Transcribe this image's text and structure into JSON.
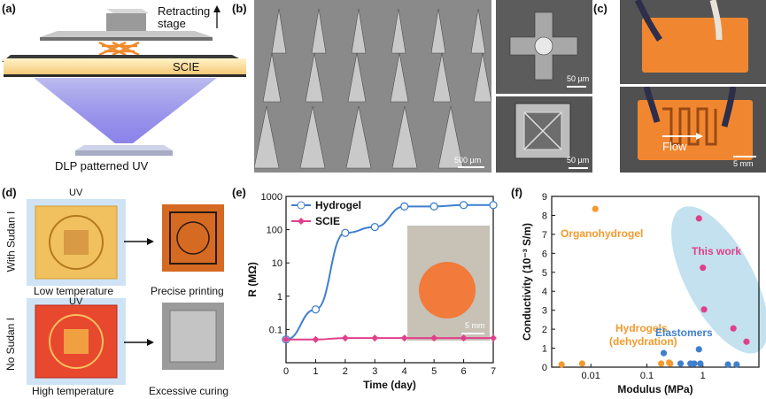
{
  "panel_labels": {
    "a": "(a)",
    "b": "(b)",
    "c": "(c)",
    "d": "(d)",
    "e": "(e)",
    "f": "(f)"
  },
  "panel_a": {
    "stage_label": "Retracting\nstage",
    "resin_label": "SCIE",
    "uv_label": "DLP patterned UV"
  },
  "panel_b": {
    "scale_main": "500 µm",
    "scale_top": "50 µm",
    "scale_bottom": "50 µm"
  },
  "panel_c": {
    "flow_label": "Flow",
    "scale": "5 mm"
  },
  "panel_d": {
    "uv_top": "UV",
    "uv_bottom": "UV",
    "with_label": "With Sudan I",
    "without_label": "No Sudan I",
    "low_temp": "Low temperature",
    "high_temp": "High temperature",
    "precise": "Precise printing",
    "excessive": "Excessive curing"
  },
  "panel_e_inset_scale": "5 mm",
  "chart_data": [
    {
      "id": "e",
      "type": "line",
      "xlabel": "Time (day)",
      "ylabel": "R (MΩ)",
      "xlim": [
        0,
        7
      ],
      "ylim": [
        0.01,
        1000
      ],
      "yscale": "log",
      "xticks": [
        0,
        1,
        2,
        3,
        4,
        5,
        6,
        7
      ],
      "yticks": [
        0.1,
        1,
        10,
        100,
        1000
      ],
      "ytick_labels": [
        "0.1",
        "1",
        "10",
        "100",
        "1000"
      ],
      "legend_position": "top-left",
      "series": [
        {
          "name": "Hydrogel",
          "color": "#3f7fcf",
          "marker": "open-circle",
          "x": [
            0,
            1,
            2,
            3,
            4,
            5,
            6,
            7
          ],
          "y": [
            0.05,
            0.4,
            80,
            120,
            500,
            500,
            550,
            550
          ]
        },
        {
          "name": "SCIE",
          "color": "#e0408a",
          "marker": "diamond",
          "x": [
            0,
            1,
            2,
            3,
            4,
            5,
            6,
            7
          ],
          "y": [
            0.05,
            0.05,
            0.055,
            0.055,
            0.055,
            0.055,
            0.055,
            0.055
          ]
        }
      ]
    },
    {
      "id": "f",
      "type": "scatter",
      "xlabel": "Modulus (MPa)",
      "ylabel": "Conductivity (10⁻³ S/m)",
      "xscale": "log",
      "xlim": [
        0.002,
        10
      ],
      "ylim": [
        0,
        9
      ],
      "xticks": [
        0.01,
        0.1,
        1
      ],
      "xtick_labels": [
        "0.01",
        "0.1",
        "1"
      ],
      "yticks": [
        0,
        1,
        2,
        3,
        4,
        5,
        6,
        7,
        8,
        9
      ],
      "annotations": [
        "Organohydrogel",
        "This work",
        "Hydrogels\n(dehydration)",
        "Elastomers"
      ],
      "groups": [
        {
          "name": "Organohydrogel",
          "color": "#f39a2e",
          "points": [
            [
              0.012,
              8.2
            ]
          ]
        },
        {
          "name": "This work",
          "color": "#e0408a",
          "points": [
            [
              0.85,
              7.7
            ],
            [
              1.0,
              5.1
            ],
            [
              1.05,
              2.9
            ],
            [
              3.5,
              1.9
            ],
            [
              6.0,
              1.2
            ]
          ]
        },
        {
          "name": "Hydrogels (dehydration)",
          "color": "#f39a2e",
          "points": [
            [
              0.003,
              0
            ],
            [
              0.007,
              0.05
            ],
            [
              0.18,
              0.05
            ],
            [
              0.25,
              0.1
            ],
            [
              0.26,
              0.05
            ]
          ]
        },
        {
          "name": "Elastomers",
          "color": "#3f7fcf",
          "points": [
            [
              0.2,
              0.6
            ],
            [
              0.4,
              0.05
            ],
            [
              0.6,
              0.05
            ],
            [
              0.7,
              0.05
            ],
            [
              0.85,
              0.8
            ],
            [
              0.9,
              0.05
            ],
            [
              2.8,
              0
            ],
            [
              4.0,
              0
            ]
          ]
        }
      ]
    }
  ]
}
